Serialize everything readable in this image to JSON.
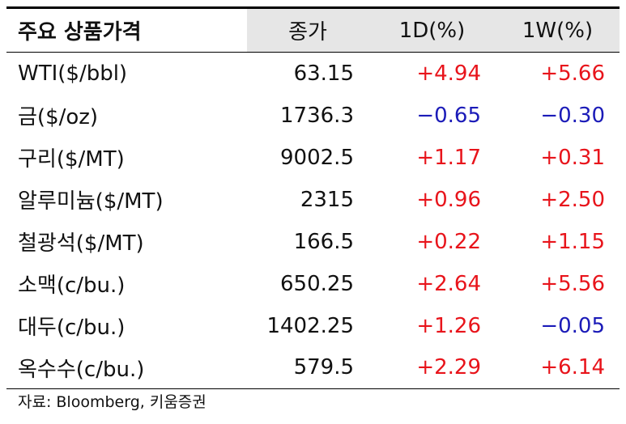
{
  "table": {
    "header": [
      "주요 상품가격",
      "종가",
      "1D(%)",
      "1W(%)"
    ],
    "rows": [
      [
        "WTI($/bbl)",
        "63.15",
        "+4.94",
        "+5.66"
      ],
      [
        "금($/oz)",
        "1736.3",
        "−0.65",
        "−0.30"
      ],
      [
        "구리($/MT)",
        "9002.5",
        "+1.17",
        "+0.31"
      ],
      [
        "알루미늄($/MT)",
        "2315",
        "+0.96",
        "+2.50"
      ],
      [
        "철광석($/MT)",
        "166.5",
        "+0.22",
        "+1.15"
      ],
      [
        "소맥(c/bu.)",
        "650.25",
        "+2.64",
        "+5.56"
      ],
      [
        "대두(c/bu.)",
        "1402.25",
        "+1.26",
        "−0.05"
      ],
      [
        "옥수수(c/bu.)",
        "579.5",
        "+2.29",
        "+6.14"
      ]
    ]
  },
  "source": "자료: Bloomberg, 키움증권"
}
